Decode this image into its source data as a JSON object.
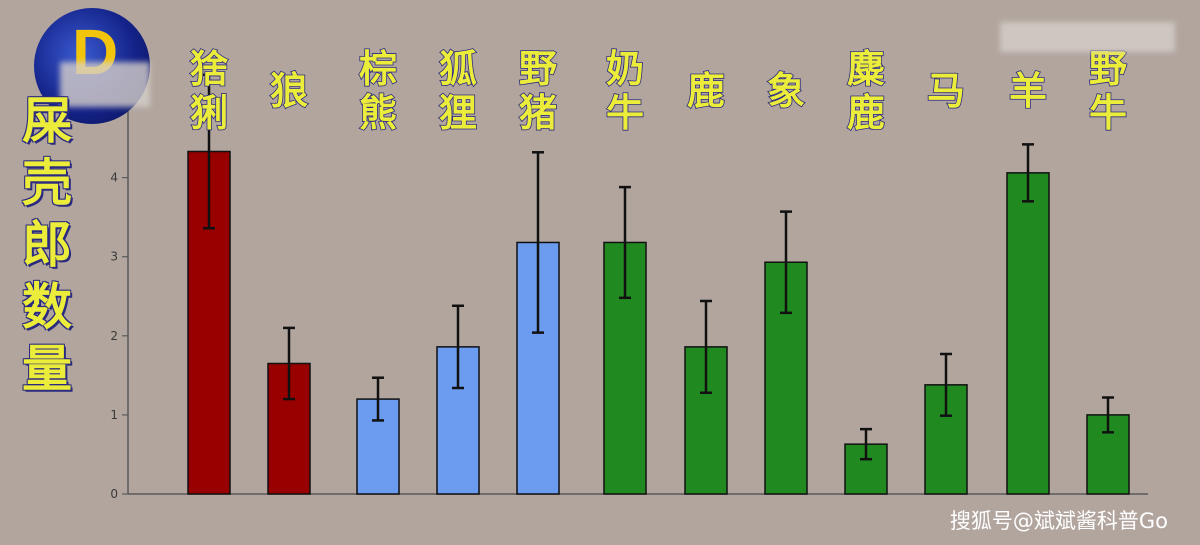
{
  "chart_data": {
    "type": "bar",
    "ylabel": "屎壳郎数量",
    "ylim": [
      0,
      4.5
    ],
    "yticks": [
      0,
      1,
      2,
      3,
      4
    ],
    "grid": false,
    "categories": [
      "猞猁",
      "狼",
      "棕熊",
      "狐狸",
      "野猪",
      "奶牛",
      "鹿",
      "象",
      "麋鹿",
      "马",
      "羊",
      "野牛"
    ],
    "values": [
      4.33,
      1.65,
      1.2,
      1.86,
      3.18,
      3.18,
      1.86,
      2.93,
      0.63,
      1.38,
      4.06,
      1.0
    ],
    "error": [
      0.97,
      0.45,
      0.27,
      0.52,
      1.14,
      0.7,
      0.58,
      0.64,
      0.19,
      0.39,
      0.36,
      0.22
    ],
    "bar_colors": [
      "#980000",
      "#980000",
      "#6b9cef",
      "#6b9cef",
      "#6b9cef",
      "#208a20",
      "#208a20",
      "#208a20",
      "#208a20",
      "#208a20",
      "#208a20",
      "#208a20"
    ]
  },
  "watermark": "搜狐号@斌斌酱科普Go",
  "logo_letter": "D"
}
